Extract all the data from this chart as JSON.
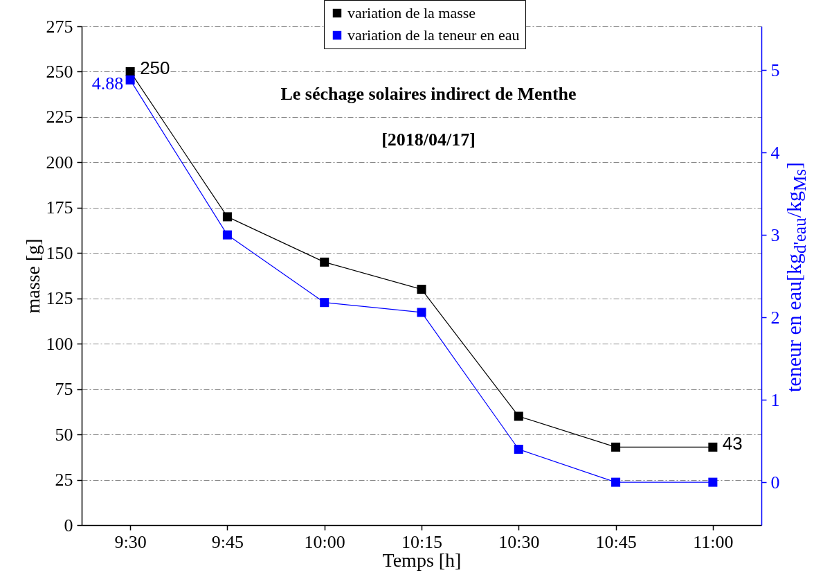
{
  "chart_data": {
    "type": "line",
    "title": "Le séchage solaires indirect de Menthe",
    "subtitle": "[2018/04/17]",
    "xlabel": "Temps [h]",
    "ylabel": "masse [g]",
    "y2label": "teneur en eau[kg$_{d'eau}$/kg$_{Ms}$]",
    "categories": [
      "9:30",
      "9:45",
      "10:00",
      "10:15",
      "10:30",
      "10:45",
      "11:00"
    ],
    "series": [
      {
        "name": "variation de la masse",
        "color": "#000000",
        "values": [
          250,
          170,
          145,
          130,
          60,
          43,
          43
        ],
        "value_labels": [
          "250",
          null,
          null,
          null,
          null,
          null,
          "43"
        ]
      },
      {
        "name": "variation de la teneur en eau",
        "color": "#0000ff",
        "axis": "y2",
        "values": [
          4.88,
          3.0,
          2.18,
          2.06,
          0.4,
          0.0,
          0.0
        ],
        "value_labels": [
          "4.88",
          null,
          null,
          null,
          null,
          null,
          null
        ]
      }
    ],
    "ylim": [
      0,
      275
    ],
    "yticks": [
      0,
      25,
      50,
      75,
      100,
      125,
      150,
      175,
      200,
      225,
      250,
      275
    ],
    "y2lim": [
      -0.52,
      5.53
    ],
    "y2ticks": [
      0,
      1,
      2,
      3,
      4,
      5
    ],
    "grid": "y",
    "legend": "top",
    "marker": "square"
  }
}
